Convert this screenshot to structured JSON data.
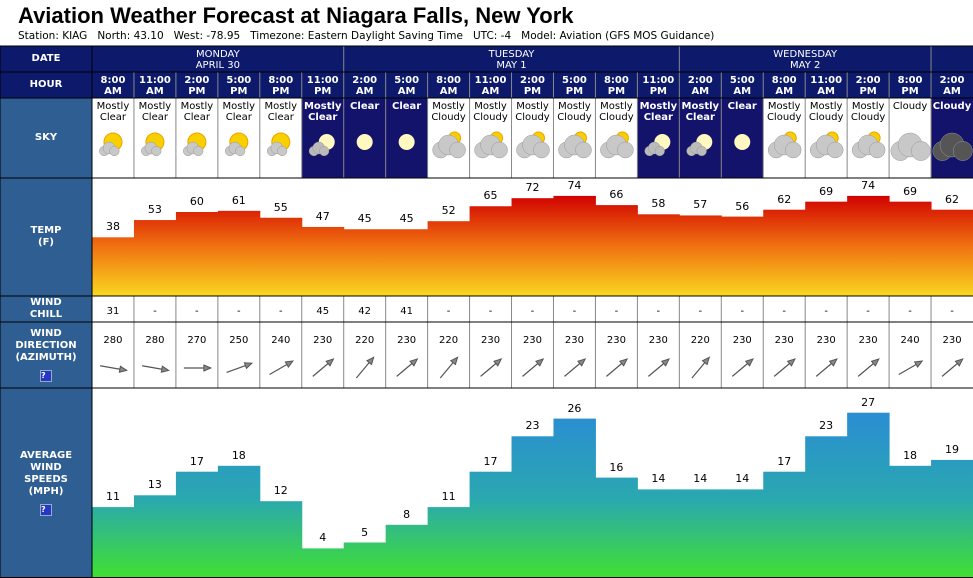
{
  "title": "Aviation Weather Forecast at Niagara Falls, New York",
  "station": [
    "Station: KIAG",
    "North: 43.10",
    "West: -78.95",
    "Timezone: Eastern Daylight Saving Time",
    "UTC: -4",
    "Model: Aviation (GFS MOS Guidance)"
  ],
  "row_labels": {
    "date": [
      "DATE"
    ],
    "hour": [
      "HOUR"
    ],
    "sky": [
      "SKY"
    ],
    "temp": [
      "TEMP",
      "(F)"
    ],
    "wind_chill": [
      "WIND",
      "CHILL"
    ],
    "wind_direction": [
      "WIND",
      "DIRECTION",
      "(AZIMUTH)"
    ],
    "wind_speed": [
      "AVERAGE",
      "WIND",
      "SPEEDS",
      "(MPH)"
    ]
  },
  "help": "?",
  "colors": {
    "header": "#0d1a6c",
    "label": "#2f5e92",
    "night": "#13136b",
    "temp_top": "#d00000",
    "temp_mid": "#f07010",
    "temp_bottom": "#f8d820",
    "wind_top": "#2a8fd0",
    "wind_mid": "#2aa8b0",
    "wind_bottom": "#40e030"
  },
  "days": [
    {
      "name": "MONDAY",
      "date": "APRIL 30",
      "hours": [
        {
          "time": "8:00",
          "ampm": "AM"
        },
        {
          "time": "11:00",
          "ampm": "AM"
        },
        {
          "time": "2:00",
          "ampm": "PM"
        },
        {
          "time": "5:00",
          "ampm": "PM"
        },
        {
          "time": "8:00",
          "ampm": "PM"
        },
        {
          "time": "11:00",
          "ampm": "PM"
        }
      ]
    },
    {
      "name": "TUESDAY",
      "date": "MAY 1",
      "hours": [
        {
          "time": "2:00",
          "ampm": "AM"
        },
        {
          "time": "5:00",
          "ampm": "AM"
        },
        {
          "time": "8:00",
          "ampm": "AM"
        },
        {
          "time": "11:00",
          "ampm": "AM"
        },
        {
          "time": "2:00",
          "ampm": "PM"
        },
        {
          "time": "5:00",
          "ampm": "PM"
        },
        {
          "time": "8:00",
          "ampm": "PM"
        },
        {
          "time": "11:00",
          "ampm": "PM"
        }
      ]
    },
    {
      "name": "WEDNESDAY",
      "date": "MAY 2",
      "hours": [
        {
          "time": "2:00",
          "ampm": "AM"
        },
        {
          "time": "5:00",
          "ampm": "AM"
        },
        {
          "time": "8:00",
          "ampm": "AM"
        },
        {
          "time": "11:00",
          "ampm": "AM"
        },
        {
          "time": "2:00",
          "ampm": "PM"
        },
        {
          "time": "8:00",
          "ampm": "PM"
        }
      ]
    },
    {
      "name": null,
      "date": null,
      "hours": [
        {
          "time": "2:00",
          "ampm": "AM"
        }
      ]
    }
  ],
  "columns": [
    {
      "sky": "Mostly Clear",
      "night": false,
      "cover": 1,
      "temp": 38,
      "wind_chill": 31,
      "wind_direction": 280,
      "wind_speed": 11
    },
    {
      "sky": "Mostly Clear",
      "night": false,
      "cover": 1,
      "temp": 53,
      "wind_chill": "-",
      "wind_direction": 280,
      "wind_speed": 13
    },
    {
      "sky": "Mostly Clear",
      "night": false,
      "cover": 1,
      "temp": 60,
      "wind_chill": "-",
      "wind_direction": 270,
      "wind_speed": 17
    },
    {
      "sky": "Mostly Clear",
      "night": false,
      "cover": 1,
      "temp": 61,
      "wind_chill": "-",
      "wind_direction": 250,
      "wind_speed": 18
    },
    {
      "sky": "Mostly Clear",
      "night": false,
      "cover": 1,
      "temp": 55,
      "wind_chill": "-",
      "wind_direction": 240,
      "wind_speed": 12
    },
    {
      "sky": "Mostly Clear",
      "night": true,
      "cover": 1,
      "temp": 47,
      "wind_chill": 45,
      "wind_direction": 230,
      "wind_speed": 4
    },
    {
      "sky": "Clear",
      "night": true,
      "cover": 0,
      "temp": 45,
      "wind_chill": 42,
      "wind_direction": 220,
      "wind_speed": 5
    },
    {
      "sky": "Clear",
      "night": true,
      "cover": 0,
      "temp": 45,
      "wind_chill": 41,
      "wind_direction": 230,
      "wind_speed": 8
    },
    {
      "sky": "Mostly Cloudy",
      "night": false,
      "cover": 2,
      "temp": 52,
      "wind_chill": "-",
      "wind_direction": 220,
      "wind_speed": 11
    },
    {
      "sky": "Mostly Cloudy",
      "night": false,
      "cover": 2,
      "temp": 65,
      "wind_chill": "-",
      "wind_direction": 230,
      "wind_speed": 17
    },
    {
      "sky": "Mostly Cloudy",
      "night": false,
      "cover": 2,
      "temp": 72,
      "wind_chill": "-",
      "wind_direction": 230,
      "wind_speed": 23
    },
    {
      "sky": "Mostly Cloudy",
      "night": false,
      "cover": 2,
      "temp": 74,
      "wind_chill": "-",
      "wind_direction": 230,
      "wind_speed": 26
    },
    {
      "sky": "Mostly Cloudy",
      "night": false,
      "cover": 2,
      "temp": 66,
      "wind_chill": "-",
      "wind_direction": 230,
      "wind_speed": 16
    },
    {
      "sky": "Mostly Clear",
      "night": true,
      "cover": 1,
      "temp": 58,
      "wind_chill": "-",
      "wind_direction": 230,
      "wind_speed": 14
    },
    {
      "sky": "Mostly Clear",
      "night": true,
      "cover": 1,
      "temp": 57,
      "wind_chill": "-",
      "wind_direction": 220,
      "wind_speed": 14
    },
    {
      "sky": "Clear",
      "night": true,
      "cover": 0,
      "temp": 56,
      "wind_chill": "-",
      "wind_direction": 230,
      "wind_speed": 14
    },
    {
      "sky": "Mostly Cloudy",
      "night": false,
      "cover": 2,
      "temp": 62,
      "wind_chill": "-",
      "wind_direction": 230,
      "wind_speed": 17
    },
    {
      "sky": "Mostly Cloudy",
      "night": false,
      "cover": 2,
      "temp": 69,
      "wind_chill": "-",
      "wind_direction": 230,
      "wind_speed": 23
    },
    {
      "sky": "Mostly Cloudy",
      "night": false,
      "cover": 2,
      "temp": 74,
      "wind_chill": "-",
      "wind_direction": 230,
      "wind_speed": 27
    },
    {
      "sky": "Cloudy",
      "night": false,
      "cover": 3,
      "temp": 69,
      "wind_chill": "-",
      "wind_direction": 240,
      "wind_speed": 18
    },
    {
      "sky": "Cloudy",
      "night": true,
      "cover": 3,
      "temp": 62,
      "wind_chill": "-",
      "wind_direction": 230,
      "wind_speed": 19
    }
  ]
}
